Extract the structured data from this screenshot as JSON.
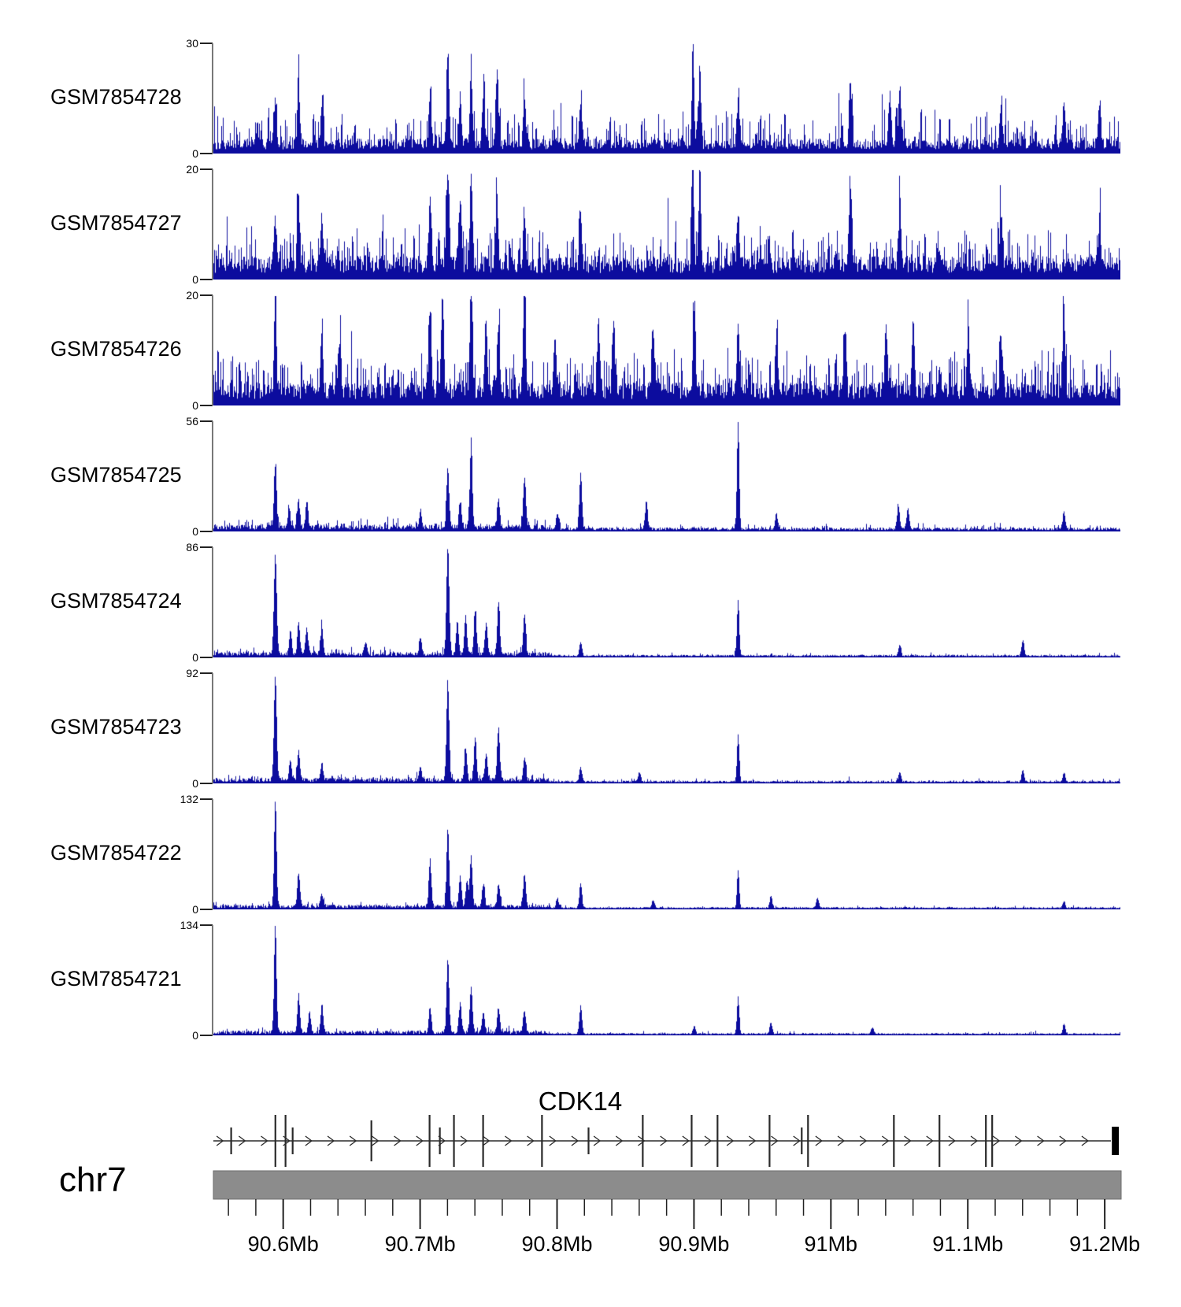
{
  "colors": {
    "signal": "#0c0c9e",
    "axis_line": "#787878",
    "tick": "#222222",
    "gene": "#2a2a2a",
    "ruler_bar": "#8c8c8c",
    "text": "#000000",
    "background": "#ffffff"
  },
  "chart_data": {
    "type": "area",
    "title": "",
    "x_axis": {
      "chromosome": "chr7",
      "unit": "Mb",
      "domain_mb": [
        90.549,
        91.212
      ],
      "ticks": [
        {
          "mb": 90.6,
          "label": "90.6Mb"
        },
        {
          "mb": 90.7,
          "label": "90.7Mb"
        },
        {
          "mb": 90.8,
          "label": "90.8Mb"
        },
        {
          "mb": 90.9,
          "label": "90.9Mb"
        },
        {
          "mb": 91.0,
          "label": "91Mb"
        },
        {
          "mb": 91.1,
          "label": "91.1Mb"
        },
        {
          "mb": 91.2,
          "label": "91.2Mb"
        }
      ],
      "minor_tick_start_mb": 90.56,
      "minor_tick_step_mb": 0.02,
      "minor_tick_end_mb": 91.2
    },
    "gene": {
      "name": "CDK14",
      "strand": "right",
      "start_mb": 90.549,
      "end_mb": 91.2045,
      "exons": [
        {
          "mb": 90.562,
          "size": "short"
        },
        {
          "mb": 90.5943,
          "size": "tall"
        },
        {
          "mb": 90.6017,
          "size": "tall"
        },
        {
          "mb": 90.6069,
          "size": "short"
        },
        {
          "mb": 90.6644,
          "size": "med"
        },
        {
          "mb": 90.7069,
          "size": "tall"
        },
        {
          "mb": 90.7144,
          "size": "short"
        },
        {
          "mb": 90.7247,
          "size": "tall"
        },
        {
          "mb": 90.746,
          "size": "tall"
        },
        {
          "mb": 90.789,
          "size": "tall"
        },
        {
          "mb": 90.823,
          "size": "short"
        },
        {
          "mb": 90.8626,
          "size": "tall"
        },
        {
          "mb": 90.8983,
          "size": "tall"
        },
        {
          "mb": 90.9172,
          "size": "tall"
        },
        {
          "mb": 90.9552,
          "size": "tall"
        },
        {
          "mb": 90.9787,
          "size": "short"
        },
        {
          "mb": 90.9833,
          "size": "tall"
        },
        {
          "mb": 91.046,
          "size": "tall"
        },
        {
          "mb": 91.0793,
          "size": "tall"
        },
        {
          "mb": 91.1132,
          "size": "tall"
        },
        {
          "mb": 91.1178,
          "size": "tall"
        }
      ],
      "end_exon_box_mb": [
        91.2052,
        91.2103
      ]
    },
    "tracks": [
      {
        "label": "GSM7854728",
        "ymin": 0,
        "ymax": 30,
        "noise": {
          "base": 0.11,
          "spike_prob": 0.32,
          "spike_amp": 0.3,
          "right_factor": 1.0
        },
        "peaks_mb": [
          [
            90.594,
            13
          ],
          [
            90.611,
            15
          ],
          [
            90.628,
            10
          ],
          [
            90.707,
            14
          ],
          [
            90.72,
            23
          ],
          [
            90.729,
            14
          ],
          [
            90.737,
            17
          ],
          [
            90.746,
            12
          ],
          [
            90.756,
            21
          ],
          [
            90.776,
            12
          ],
          [
            90.817,
            11
          ],
          [
            90.899,
            30,
            1.3
          ],
          [
            90.904,
            23,
            1.3
          ],
          [
            90.932,
            12
          ],
          [
            91.014,
            17
          ],
          [
            91.043,
            13
          ],
          [
            91.05,
            16
          ],
          [
            91.124,
            11
          ],
          [
            91.17,
            12
          ],
          [
            91.196,
            12
          ]
        ]
      },
      {
        "label": "GSM7854727",
        "ymin": 0,
        "ymax": 20,
        "noise": {
          "base": 0.17,
          "spike_prob": 0.33,
          "spike_amp": 0.3,
          "right_factor": 1.0
        },
        "peaks_mb": [
          [
            90.594,
            9
          ],
          [
            90.611,
            12
          ],
          [
            90.628,
            9
          ],
          [
            90.707,
            13
          ],
          [
            90.72,
            18
          ],
          [
            90.729,
            13
          ],
          [
            90.737,
            16
          ],
          [
            90.756,
            12
          ],
          [
            90.776,
            10
          ],
          [
            90.817,
            9
          ],
          [
            90.899,
            20,
            1.3
          ],
          [
            90.904,
            18,
            1.3
          ],
          [
            90.932,
            10
          ],
          [
            91.014,
            15
          ],
          [
            91.05,
            10
          ],
          [
            91.124,
            9
          ],
          [
            91.196,
            9
          ]
        ]
      },
      {
        "label": "GSM7854726",
        "ymin": 0,
        "ymax": 20,
        "noise": {
          "base": 0.17,
          "spike_prob": 0.36,
          "spike_amp": 0.32,
          "right_factor": 1.0
        },
        "peaks_mb": [
          [
            90.594,
            19,
            1.4
          ],
          [
            90.628,
            11
          ],
          [
            90.641,
            10
          ],
          [
            90.707,
            15
          ],
          [
            90.716,
            17
          ],
          [
            90.737,
            20
          ],
          [
            90.748,
            12
          ],
          [
            90.757,
            13
          ],
          [
            90.776,
            19
          ],
          [
            90.798,
            10
          ],
          [
            90.83,
            12
          ],
          [
            90.841,
            13
          ],
          [
            90.87,
            10
          ],
          [
            90.9,
            16
          ],
          [
            90.932,
            13
          ],
          [
            90.96,
            11
          ],
          [
            91.01,
            10
          ],
          [
            91.04,
            12
          ],
          [
            91.06,
            12
          ],
          [
            91.1,
            12
          ],
          [
            91.124,
            10
          ],
          [
            91.17,
            15
          ]
        ]
      },
      {
        "label": "GSM7854725",
        "ymin": 0,
        "ymax": 56,
        "noise": {
          "base": 0.05,
          "spike_prob": 0.2,
          "spike_amp": 0.08,
          "right_factor": 0.6
        },
        "peaks_mb": [
          [
            90.594,
            31,
            1.6
          ],
          [
            90.604,
            10
          ],
          [
            90.611,
            14
          ],
          [
            90.617,
            13
          ],
          [
            90.7,
            9
          ],
          [
            90.72,
            30,
            1.6
          ],
          [
            90.729,
            12
          ],
          [
            90.737,
            42
          ],
          [
            90.757,
            14
          ],
          [
            90.776,
            26
          ],
          [
            90.8,
            8
          ],
          [
            90.817,
            29
          ],
          [
            90.865,
            14
          ],
          [
            90.932,
            55,
            1.4
          ],
          [
            90.96,
            8
          ],
          [
            91.049,
            12
          ],
          [
            91.056,
            11
          ],
          [
            91.17,
            9
          ]
        ]
      },
      {
        "label": "GSM7854724",
        "ymin": 0,
        "ymax": 86,
        "noise": {
          "base": 0.04,
          "spike_prob": 0.16,
          "spike_amp": 0.06,
          "right_factor": 0.5
        },
        "peaks_mb": [
          [
            90.594,
            79,
            1.7
          ],
          [
            90.605,
            18
          ],
          [
            90.611,
            24
          ],
          [
            90.617,
            20
          ],
          [
            90.628,
            22
          ],
          [
            90.66,
            10
          ],
          [
            90.7,
            12
          ],
          [
            90.72,
            84,
            1.7
          ],
          [
            90.727,
            25
          ],
          [
            90.733,
            30
          ],
          [
            90.74,
            34
          ],
          [
            90.748,
            25
          ],
          [
            90.757,
            41
          ],
          [
            90.776,
            30
          ],
          [
            90.817,
            11
          ],
          [
            90.932,
            44,
            1.4
          ],
          [
            91.05,
            9
          ],
          [
            91.14,
            12
          ]
        ]
      },
      {
        "label": "GSM7854723",
        "ymin": 0,
        "ymax": 92,
        "noise": {
          "base": 0.04,
          "spike_prob": 0.14,
          "spike_amp": 0.055,
          "right_factor": 0.5
        },
        "peaks_mb": [
          [
            90.594,
            87,
            1.7
          ],
          [
            90.605,
            16
          ],
          [
            90.611,
            24
          ],
          [
            90.628,
            14
          ],
          [
            90.7,
            10
          ],
          [
            90.72,
            81,
            1.7
          ],
          [
            90.733,
            28
          ],
          [
            90.74,
            35
          ],
          [
            90.748,
            22
          ],
          [
            90.757,
            44
          ],
          [
            90.776,
            18
          ],
          [
            90.817,
            12
          ],
          [
            90.86,
            8
          ],
          [
            90.932,
            40,
            1.4
          ],
          [
            91.05,
            8
          ],
          [
            91.14,
            10
          ],
          [
            91.17,
            8
          ]
        ]
      },
      {
        "label": "GSM7854722",
        "ymin": 0,
        "ymax": 132,
        "noise": {
          "base": 0.035,
          "spike_prob": 0.11,
          "spike_amp": 0.05,
          "right_factor": 0.5
        },
        "peaks_mb": [
          [
            90.594,
            129,
            1.5
          ],
          [
            90.611,
            40
          ],
          [
            90.628,
            15
          ],
          [
            90.707,
            55
          ],
          [
            90.72,
            95,
            1.6
          ],
          [
            90.729,
            38
          ],
          [
            90.734,
            30
          ],
          [
            90.737,
            60
          ],
          [
            90.746,
            28
          ],
          [
            90.757,
            26
          ],
          [
            90.776,
            40
          ],
          [
            90.8,
            12
          ],
          [
            90.817,
            30
          ],
          [
            90.87,
            10
          ],
          [
            90.932,
            46,
            1.4
          ],
          [
            90.956,
            14
          ],
          [
            90.99,
            12
          ],
          [
            91.17,
            8
          ]
        ]
      },
      {
        "label": "GSM7854721",
        "ymin": 0,
        "ymax": 134,
        "noise": {
          "base": 0.035,
          "spike_prob": 0.1,
          "spike_amp": 0.045,
          "right_factor": 0.5
        },
        "peaks_mb": [
          [
            90.594,
            132,
            1.5
          ],
          [
            90.611,
            45
          ],
          [
            90.619,
            24
          ],
          [
            90.628,
            32
          ],
          [
            90.707,
            30
          ],
          [
            90.72,
            91,
            1.6
          ],
          [
            90.729,
            36
          ],
          [
            90.737,
            56
          ],
          [
            90.746,
            26
          ],
          [
            90.757,
            30
          ],
          [
            90.776,
            28
          ],
          [
            90.817,
            34
          ],
          [
            90.9,
            10
          ],
          [
            90.932,
            45,
            1.4
          ],
          [
            90.956,
            14
          ],
          [
            91.03,
            8
          ],
          [
            91.17,
            12
          ]
        ]
      }
    ]
  }
}
